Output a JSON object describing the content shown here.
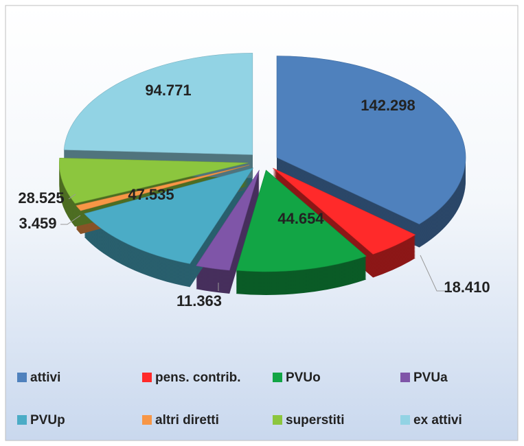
{
  "chart_data": {
    "type": "pie",
    "categories": [
      "attivi",
      "pens. contrib.",
      "PVUo",
      "PVUa",
      "PVUp",
      "altri diretti",
      "superstiti",
      "ex attivi"
    ],
    "values": [
      142298,
      18410,
      44654,
      11363,
      47535,
      3459,
      28525,
      94771
    ],
    "value_labels": [
      "142.298",
      "18.410",
      "44.654",
      "11.363",
      "47.535",
      "3.459",
      "28.525",
      "94.771"
    ],
    "colors": [
      "#4f81bd",
      "#ff2a2a",
      "#12a545",
      "#7f55a8",
      "#4bacc6",
      "#f79646",
      "#8cc63e",
      "#92d3e4"
    ]
  }
}
